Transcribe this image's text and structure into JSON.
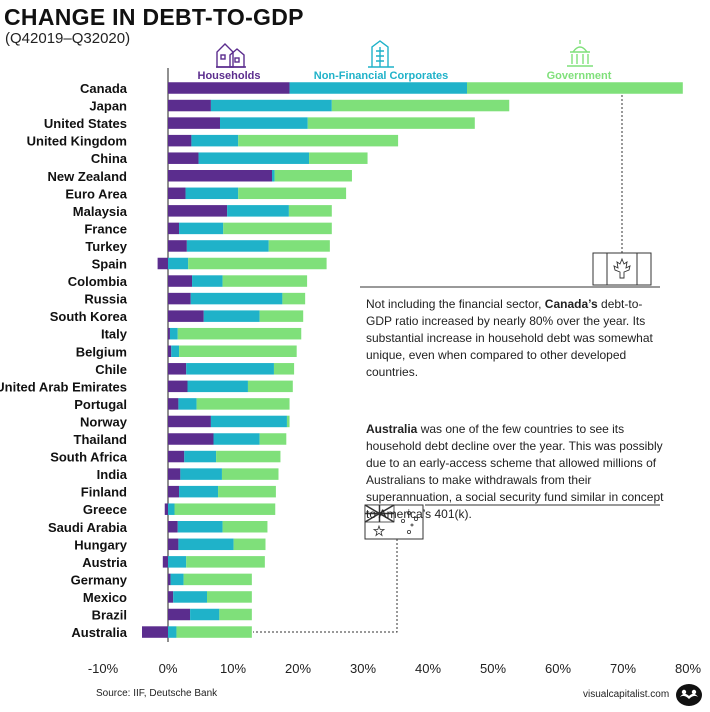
{
  "title": "CHANGE IN DEBT-TO-GDP",
  "subtitle": "(Q42019–Q32020)",
  "source": "Source: IIF, Deutsche Bank",
  "brand": "visualcapitalist.com",
  "annotation_canada": {
    "pre": "Not including the financial sector, ",
    "bold": "Canada’s",
    "post": " debt-to-GDP ratio increased by nearly 80% over the year. Its substantial increase in household debt was somewhat unique, even when compared to other developed countries."
  },
  "annotation_australia": {
    "bold": "Australia",
    "post": " was one of the few countries to see its household debt decline over the year. This was possibly due to an early-access scheme that allowed millions of Australians to make withdrawals from their superannuation, a social security fund similar in concept to America’s 401(k)."
  },
  "icons": [
    "houses-icon",
    "office-building-icon",
    "capitol-building-icon",
    "canada-flag-icon",
    "australia-flag-icon",
    "visual-capitalist-logo"
  ],
  "colors": {
    "households": "#5b2d8e",
    "corporates": "#1fb2c9",
    "government": "#7fe07a"
  },
  "chart_data": {
    "type": "bar",
    "orientation": "horizontal",
    "stacked": true,
    "xlim": [
      -10,
      80
    ],
    "xticks": [
      "-10%",
      "0%",
      "10%",
      "20%",
      "30%",
      "40%",
      "50%",
      "60%",
      "70%",
      "80%"
    ],
    "xtick_values": [
      -10,
      0,
      10,
      20,
      30,
      40,
      50,
      60,
      70,
      80
    ],
    "categories": [
      "Canada",
      "Japan",
      "United States",
      "United Kingdom",
      "China",
      "New Zealand",
      "Euro Area",
      "Malaysia",
      "France",
      "Turkey",
      "Spain",
      "Colombia",
      "Russia",
      "South Korea",
      "Italy",
      "Belgium",
      "Chile",
      "United Arab Emirates",
      "Portugal",
      "Norway",
      "Thailand",
      "South Africa",
      "India",
      "Finland",
      "Greece",
      "Saudi Arabia",
      "Hungary",
      "Austria",
      "Germany",
      "Mexico",
      "Brazil",
      "Australia"
    ],
    "series": [
      {
        "name": "Households",
        "color": "#5b2d8e",
        "values": [
          18.7,
          6.6,
          8.0,
          3.6,
          4.7,
          16.0,
          2.7,
          9.1,
          1.7,
          2.9,
          -1.6,
          3.7,
          3.5,
          5.5,
          0.3,
          0.5,
          2.8,
          3.0,
          1.6,
          6.6,
          7.0,
          2.5,
          1.9,
          1.7,
          -0.5,
          1.5,
          1.6,
          -0.8,
          0.4,
          0.8,
          3.4,
          -4.0
        ]
      },
      {
        "name": "Non-Financial Corporates",
        "color": "#1fb2c9",
        "values": [
          27.3,
          18.6,
          13.5,
          7.2,
          17.0,
          0.4,
          8.1,
          9.5,
          6.8,
          12.6,
          3.1,
          4.7,
          14.1,
          8.6,
          1.2,
          1.2,
          13.5,
          9.3,
          2.8,
          11.7,
          7.1,
          4.9,
          6.4,
          6.0,
          1.0,
          6.9,
          8.5,
          2.8,
          2.0,
          5.2,
          4.5,
          1.3
        ]
      },
      {
        "name": "Government",
        "color": "#7fe07a",
        "values": [
          33.2,
          27.3,
          25.7,
          24.6,
          9.0,
          11.9,
          16.6,
          6.6,
          16.7,
          9.4,
          21.3,
          13.0,
          3.5,
          6.7,
          19.0,
          18.1,
          3.1,
          6.9,
          14.3,
          0.4,
          4.1,
          9.9,
          8.7,
          8.9,
          15.5,
          6.9,
          4.9,
          12.1,
          10.5,
          6.9,
          5.0,
          11.6
        ]
      }
    ]
  }
}
